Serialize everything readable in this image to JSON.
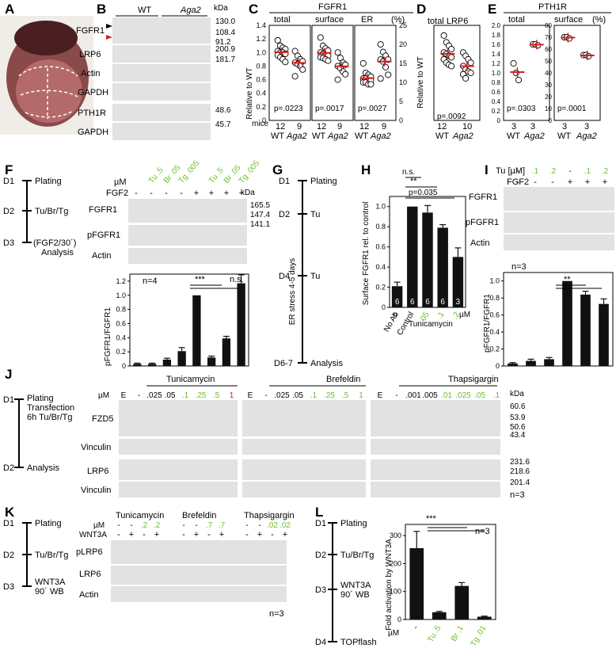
{
  "panels": {
    "A": "A",
    "B": "B",
    "C": "C",
    "D": "D",
    "E": "E",
    "F": "F",
    "G": "G",
    "H": "H",
    "I": "I",
    "J": "J",
    "K": "K",
    "L": "L"
  },
  "common": {
    "kda": "kDa",
    "mice": "mice",
    "wt": "WT",
    "aga2": "Aga2",
    "um": "µM",
    "fgf2": "FGF2",
    "wnt3a": "WNT3A",
    "n3": "n=3",
    "n4": "n=4",
    "minus": "-",
    "plus": "+"
  },
  "panel_b": {
    "groups": [
      "WT",
      "Aga2"
    ],
    "blots": [
      "FGFR1",
      "LRP6",
      "Actin",
      "GAPDH",
      "PTH1R",
      "GAPDH"
    ],
    "markers": [
      "130.0",
      "108.4",
      "91.2",
      "200.9",
      "181.7",
      "48.6",
      "45.7"
    ]
  },
  "panel_c": {
    "header": "FGFR1",
    "subtitles": [
      "total",
      "surface",
      "ER",
      "(%)"
    ],
    "ylabel": "Relative to WT",
    "pvalues": [
      "p=.0223",
      "p=.0017",
      "p=.0027"
    ],
    "n": [
      "12",
      "9",
      "12",
      "9",
      "12",
      "9"
    ],
    "ticks_left": [
      "1.4",
      "1.2",
      "1.0",
      "0.8",
      "0.6",
      "0.4",
      "0.2",
      "0"
    ],
    "ticks_er": [
      "25",
      "20",
      "15",
      "10",
      "5",
      "0"
    ]
  },
  "panel_d": {
    "header": "total LRP6",
    "ylabel": "Relative to WT",
    "pvalue": "p=.0092",
    "n": [
      "12",
      "10"
    ]
  },
  "panel_e": {
    "header": "PTH1R",
    "subtitles": [
      "total",
      "surface",
      "(%)"
    ],
    "pvalues": [
      "p=.0303",
      "p=.0001"
    ],
    "n": [
      "3",
      "3",
      "3",
      "3"
    ],
    "ticks_total": [
      "2.0",
      "1.8",
      "1.6",
      "1.4",
      "1.2",
      "1.0",
      "0.8",
      "0.6",
      "0.4",
      "0.2",
      "0"
    ],
    "ticks_surface": [
      "80",
      "70",
      "60",
      "50",
      "40",
      "30",
      "20",
      "10",
      "0"
    ]
  },
  "panel_f": {
    "timeline": [
      "D1",
      "Plating",
      "D2",
      "Tu/Br/Tg",
      "D3",
      "(FGF2/30´)",
      "Analysis"
    ],
    "treatments": [
      "Tu .5",
      "Br .05",
      "Tg .005",
      "Tu .5",
      "Br .05",
      "Tg .005"
    ],
    "blots": [
      "FGFR1",
      "pFGFR1",
      "Actin"
    ],
    "markers": [
      "165.5",
      "147.4",
      "141.1"
    ],
    "ylabel": "pFGFR1/FGFR1",
    "sig": [
      "***",
      "n.s."
    ],
    "ticks": [
      "1.2",
      "1.0",
      "0.8",
      "0.6",
      "0.4",
      "0.2",
      "0"
    ]
  },
  "panel_g": {
    "timeline": [
      "D1",
      "Plating",
      "D2",
      "Tu",
      "D4",
      "Tu",
      "D6-7",
      "Analysis"
    ],
    "vertical": "ER stress 4-5 days"
  },
  "panel_h": {
    "ylabel": "Surface FGFR1 rel. to control",
    "sig": [
      "n.s.",
      "**",
      "p=0.035"
    ],
    "categories": [
      "No Ab",
      "Control",
      ".05",
      ".1",
      ".2"
    ],
    "group_label": "Tunicamycin",
    "n": [
      "6",
      "6",
      "6",
      "6",
      "3"
    ],
    "n_label": "n",
    "ticks": [
      "1.0",
      "0.8",
      "0.6",
      "0.4",
      "0.2",
      "0"
    ]
  },
  "panel_i": {
    "header": "Tu [µM]",
    "doses": [
      "-",
      "-",
      ".1",
      ".2",
      "-",
      ".1",
      ".2"
    ],
    "blots": [
      "FGFR1",
      "pFGFR1",
      "Actin"
    ],
    "ylabel": "pFGFR1/FGFR1",
    "sig": "**",
    "ticks": [
      "1.0",
      "0.8",
      "0.6",
      "0.4",
      "0.2",
      "0"
    ]
  },
  "panel_j": {
    "timeline": [
      "D1",
      "Plating",
      "Transfection",
      "6h Tu/Br/Tg",
      "D2",
      "Analysis"
    ],
    "drugs": [
      "Tunicamycin",
      "Brefeldin",
      "Thapsigargin"
    ],
    "doses_tu": [
      "E",
      "-",
      ".025",
      ".05",
      ".1",
      ".25",
      ".5",
      "1"
    ],
    "doses_br": [
      "E",
      "-",
      ".025",
      ".05",
      ".1",
      ".25",
      ".5",
      "1"
    ],
    "doses_tg": [
      "E",
      "-",
      ".001",
      ".005",
      ".01",
      ".025",
      ".05",
      ".1"
    ],
    "blots": [
      "FZD5",
      "Vinculin",
      "LRP6",
      "Vinculin"
    ],
    "markers": [
      "60.6",
      "53.9",
      "50.6",
      "43.4",
      "231.6",
      "218.6",
      "201.4"
    ]
  },
  "panel_k": {
    "timeline": [
      "D1",
      "Plating",
      "D2",
      "Tu/Br/Tg",
      "D3",
      "WNT3A",
      "90´ WB"
    ],
    "drugs": [
      "Tunicamycin",
      "Brefeldin",
      "Thapsigargin"
    ],
    "doses": [
      ".2",
      ".2",
      ".7",
      ".7",
      ".02",
      ".02"
    ],
    "blots": [
      "pLRP6",
      "LRP6",
      "Actin"
    ]
  },
  "panel_l": {
    "timeline": [
      "D1",
      "Plating",
      "D2",
      "Tu/Br/Tg",
      "D3",
      "WNT3A",
      "90´ WB",
      "D4",
      "TOPflash"
    ],
    "ylabel": "Fold activation by WNT3A",
    "sig": "***",
    "categories": [
      "-",
      "Tu .5",
      "Br .1",
      "Tg .01"
    ],
    "ticks": [
      "300",
      "200",
      "100",
      "0"
    ]
  },
  "chart_data": [
    {
      "type": "scatter",
      "panel": "C-total",
      "ylabel": "Relative to WT",
      "ylim": [
        0,
        1.4
      ],
      "series": [
        {
          "name": "WT",
          "values": [
            1.18,
            1.1,
            1.07,
            1.05,
            1.02,
            1.0,
            1.0,
            0.98,
            0.96,
            0.93,
            0.9,
            0.86
          ]
        },
        {
          "name": "Aga2",
          "values": [
            1.02,
            0.95,
            0.9,
            0.87,
            0.85,
            0.83,
            0.8,
            0.75,
            0.65
          ]
        }
      ]
    },
    {
      "type": "scatter",
      "panel": "C-surface",
      "ylim": [
        0,
        1.4
      ],
      "series": [
        {
          "name": "WT",
          "values": [
            1.22,
            1.1,
            1.06,
            1.03,
            1.0,
            0.98,
            0.96,
            0.95,
            0.93,
            0.92,
            0.9,
            0.88
          ]
        },
        {
          "name": "Aga2",
          "values": [
            1.0,
            0.92,
            0.85,
            0.82,
            0.8,
            0.77,
            0.72,
            0.68,
            0.6
          ]
        }
      ]
    },
    {
      "type": "scatter",
      "panel": "C-ER",
      "ylim": [
        0,
        25
      ],
      "series": [
        {
          "name": "WT",
          "values": [
            15,
            12.5,
            12,
            11.5,
            11,
            11,
            10.5,
            10.5,
            10,
            10,
            9.5,
            9.5
          ]
        },
        {
          "name": "Aga2",
          "values": [
            20,
            18,
            17,
            16,
            16,
            15.5,
            14,
            12,
            11
          ]
        }
      ]
    },
    {
      "type": "scatter",
      "panel": "D",
      "ylabel": "Relative to WT",
      "ylim": [
        0,
        1.4
      ],
      "series": [
        {
          "name": "WT",
          "values": [
            1.25,
            1.15,
            1.1,
            1.05,
            1.0,
            0.98,
            0.95,
            0.93,
            0.9,
            0.85,
            0.82,
            0.8
          ]
        },
        {
          "name": "Aga2",
          "values": [
            1.0,
            0.95,
            0.9,
            0.85,
            0.8,
            0.75,
            0.72,
            0.7,
            0.68,
            0.62
          ]
        }
      ]
    },
    {
      "type": "scatter",
      "panel": "E-total",
      "ylim": [
        0,
        2.0
      ],
      "series": [
        {
          "name": "WT",
          "values": [
            1.2,
            1.0,
            0.85
          ]
        },
        {
          "name": "Aga2",
          "values": [
            1.6,
            1.6,
            1.58
          ]
        }
      ]
    },
    {
      "type": "scatter",
      "panel": "E-surface",
      "ylim": [
        0,
        80
      ],
      "series": [
        {
          "name": "WT",
          "values": [
            70,
            70,
            69
          ]
        },
        {
          "name": "Aga2",
          "values": [
            55,
            55,
            54
          ]
        }
      ]
    },
    {
      "type": "bar",
      "panel": "F",
      "ylabel": "pFGFR1/FGFR1",
      "ylim": [
        0,
        1.3
      ],
      "values": [
        0.03,
        0.03,
        0.09,
        0.21,
        1.0,
        0.12,
        0.39,
        1.17
      ],
      "errors": [
        0.01,
        0.01,
        0.02,
        0.05,
        0.0,
        0.02,
        0.03,
        0.12
      ]
    },
    {
      "type": "bar",
      "panel": "H",
      "ylabel": "Surface FGFR1 rel. to control",
      "ylim": [
        0,
        1.1
      ],
      "categories": [
        "No Ab",
        "Control",
        ".05",
        ".1",
        ".2"
      ],
      "values": [
        0.21,
        1.0,
        0.94,
        0.79,
        0.5
      ],
      "errors": [
        0.04,
        0.0,
        0.07,
        0.03,
        0.09
      ]
    },
    {
      "type": "bar",
      "panel": "I",
      "ylabel": "pFGFR1/FGFR1",
      "ylim": [
        0,
        1.1
      ],
      "values": [
        0.03,
        0.06,
        0.08,
        1.0,
        0.84,
        0.73
      ],
      "errors": [
        0.01,
        0.02,
        0.02,
        0.0,
        0.04,
        0.06
      ]
    },
    {
      "type": "bar",
      "panel": "L",
      "ylabel": "Fold activation by WNT3A",
      "ylim": [
        0,
        340
      ],
      "categories": [
        "-",
        "Tu .5",
        "Br .1",
        "Tg .01"
      ],
      "values": [
        255,
        26,
        120,
        10
      ],
      "errors": [
        60,
        3,
        12,
        2
      ]
    }
  ]
}
